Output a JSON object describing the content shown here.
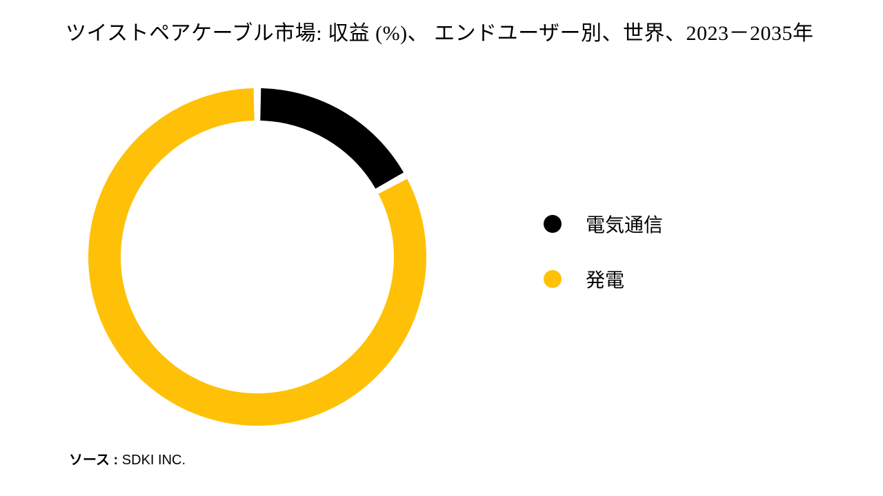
{
  "title": "ツイストペアケーブル市場: 収益 (%)、 エンドユーザー別、世界、2023－2035年",
  "chart": {
    "type": "donut",
    "slices": [
      {
        "label": "電気通信",
        "value": 17,
        "color": "#000000"
      },
      {
        "label": "発電",
        "value": 83,
        "color": "#ffc107"
      }
    ],
    "background_color": "#ffffff",
    "outer_radius": 245,
    "inner_radius": 198,
    "gap_deg": 2.5,
    "start_angle_deg": -90,
    "title_fontsize": 30,
    "title_color": "#000000",
    "legend_fontsize": 28,
    "legend_dot_radius": 13
  },
  "legend": {
    "items": [
      {
        "label": "電気通信",
        "color": "#000000"
      },
      {
        "label": "発電",
        "color": "#ffc107"
      }
    ]
  },
  "source": {
    "label": "ソース  : ",
    "value": "SDKI INC."
  }
}
